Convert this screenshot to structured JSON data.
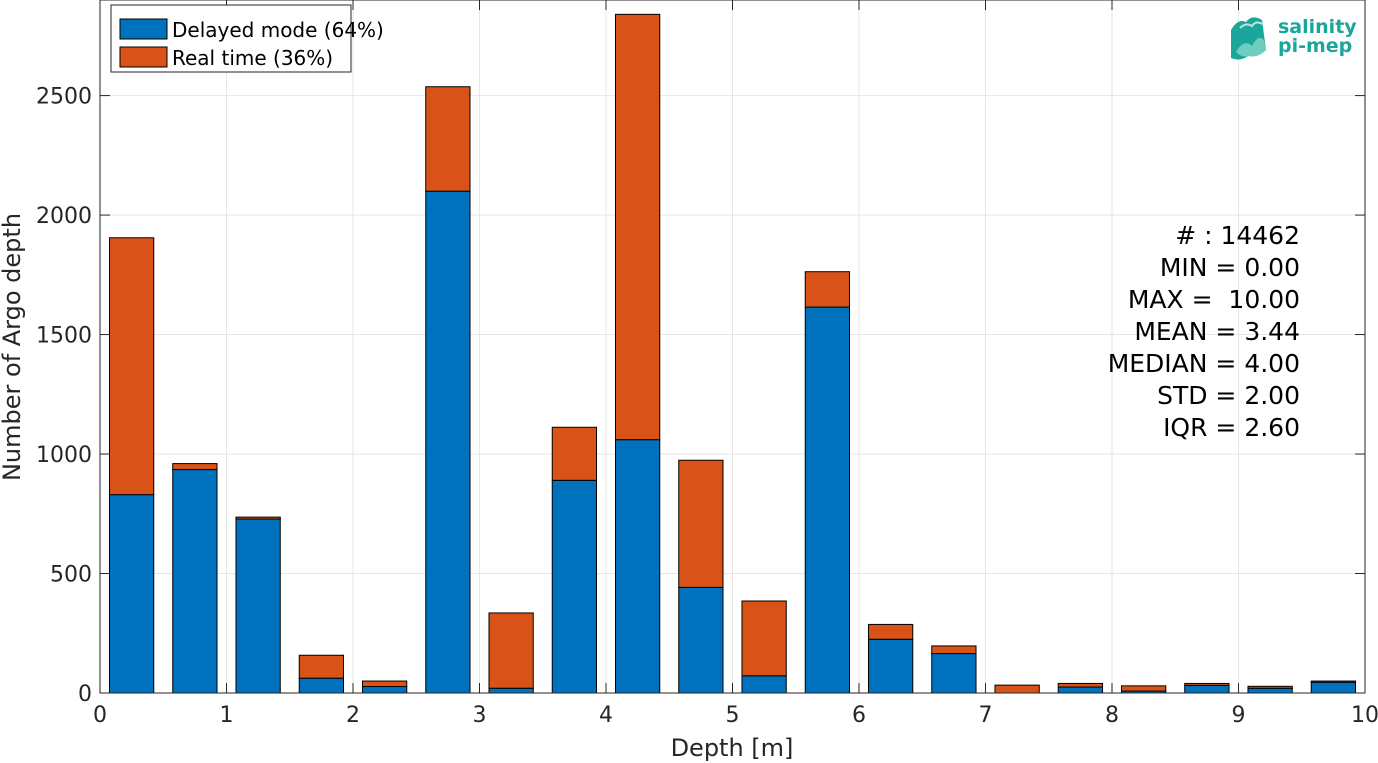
{
  "chart_data": {
    "type": "bar",
    "stacked": true,
    "xlabel": "Depth [m]",
    "ylabel": "Number of Argo depth",
    "xlim": [
      0,
      10
    ],
    "ylim": [
      0,
      2900
    ],
    "grid": true,
    "legend_position": "top-left",
    "x_ticks": [
      "0",
      "1",
      "2",
      "3",
      "4",
      "5",
      "6",
      "7",
      "8",
      "9",
      "10"
    ],
    "y_ticks": [
      "0",
      "500",
      "1000",
      "1500",
      "2000",
      "2500"
    ],
    "bin_width": 0.5,
    "x": [
      0.25,
      0.75,
      1.25,
      1.75,
      2.25,
      2.75,
      3.25,
      3.75,
      4.25,
      4.75,
      5.25,
      5.75,
      6.25,
      6.75,
      7.25,
      7.75,
      8.25,
      8.75,
      9.25,
      9.75
    ],
    "series": [
      {
        "name": "Delayed mode (64%)",
        "color": "#0072bd",
        "values": [
          830,
          935,
          728,
          62,
          27,
          2100,
          20,
          890,
          1060,
          442,
          72,
          1615,
          225,
          165,
          0,
          25,
          8,
          32,
          20,
          45
        ]
      },
      {
        "name": "Real time (36%)",
        "color": "#d95319",
        "values": [
          1075,
          25,
          8,
          96,
          23,
          437,
          315,
          222,
          1780,
          532,
          313,
          148,
          62,
          32,
          33,
          15,
          22,
          8,
          8,
          5
        ]
      }
    ]
  },
  "stats": [
    "# : 14462",
    "MIN = 0.00",
    "MAX =  10.00",
    "MEAN = 3.44",
    "MEDIAN = 4.00",
    "STD = 2.00",
    "IQR = 2.60"
  ],
  "logo": {
    "line1": "salinity",
    "line2": "pi-mep",
    "color": "#1aa69a"
  }
}
